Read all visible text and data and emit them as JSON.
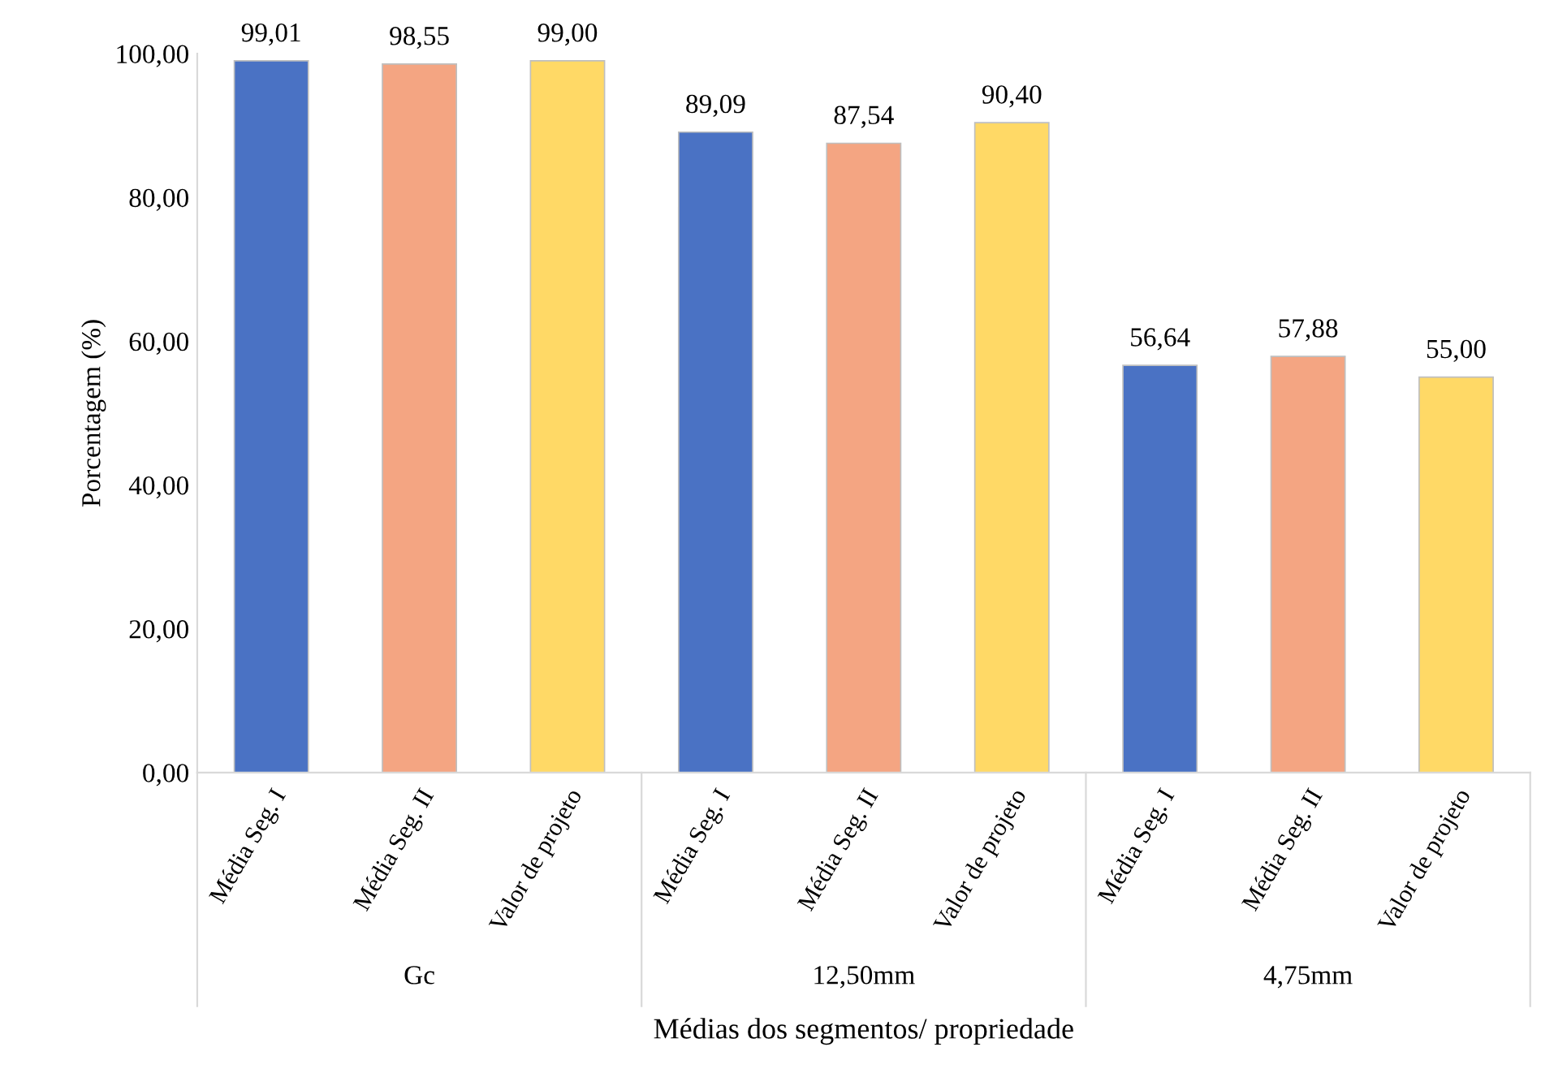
{
  "chart_data": {
    "type": "bar",
    "xlabel": "Médias dos segmentos/ propriedade",
    "ylabel": "Porcentagem (%)",
    "categories": [
      "Média Seg. I",
      "Média Seg. II",
      "Valor de projeto",
      "Média Seg. I",
      "Média Seg. II",
      "Valor de projeto",
      "Média Seg. I",
      "Média Seg. II",
      "Valor de projeto"
    ],
    "values": [
      99.01,
      98.55,
      99.0,
      89.09,
      87.54,
      90.4,
      56.64,
      57.88,
      55.0
    ],
    "value_labels": [
      "99,01",
      "98,55",
      "99,00",
      "89,09",
      "87,54",
      "90,40",
      "56,64",
      "57,88",
      "55,00"
    ],
    "colors": [
      "#4a72c4",
      "#f4a582",
      "#ffd966",
      "#4a72c4",
      "#f4a582",
      "#ffd966",
      "#4a72c4",
      "#f4a582",
      "#ffd966"
    ],
    "annotations": [
      "Gc",
      "12,50mm",
      "4,75mm"
    ],
    "ylim": [
      0,
      100
    ],
    "yticks": [
      {
        "value": 0,
        "label": "0,00"
      },
      {
        "value": 20,
        "label": "20,00"
      },
      {
        "value": 40,
        "label": "40,00"
      },
      {
        "value": 60,
        "label": "60,00"
      },
      {
        "value": 80,
        "label": "80,00"
      },
      {
        "value": 100,
        "label": "100,00"
      }
    ],
    "grid": false,
    "legend": false
  }
}
